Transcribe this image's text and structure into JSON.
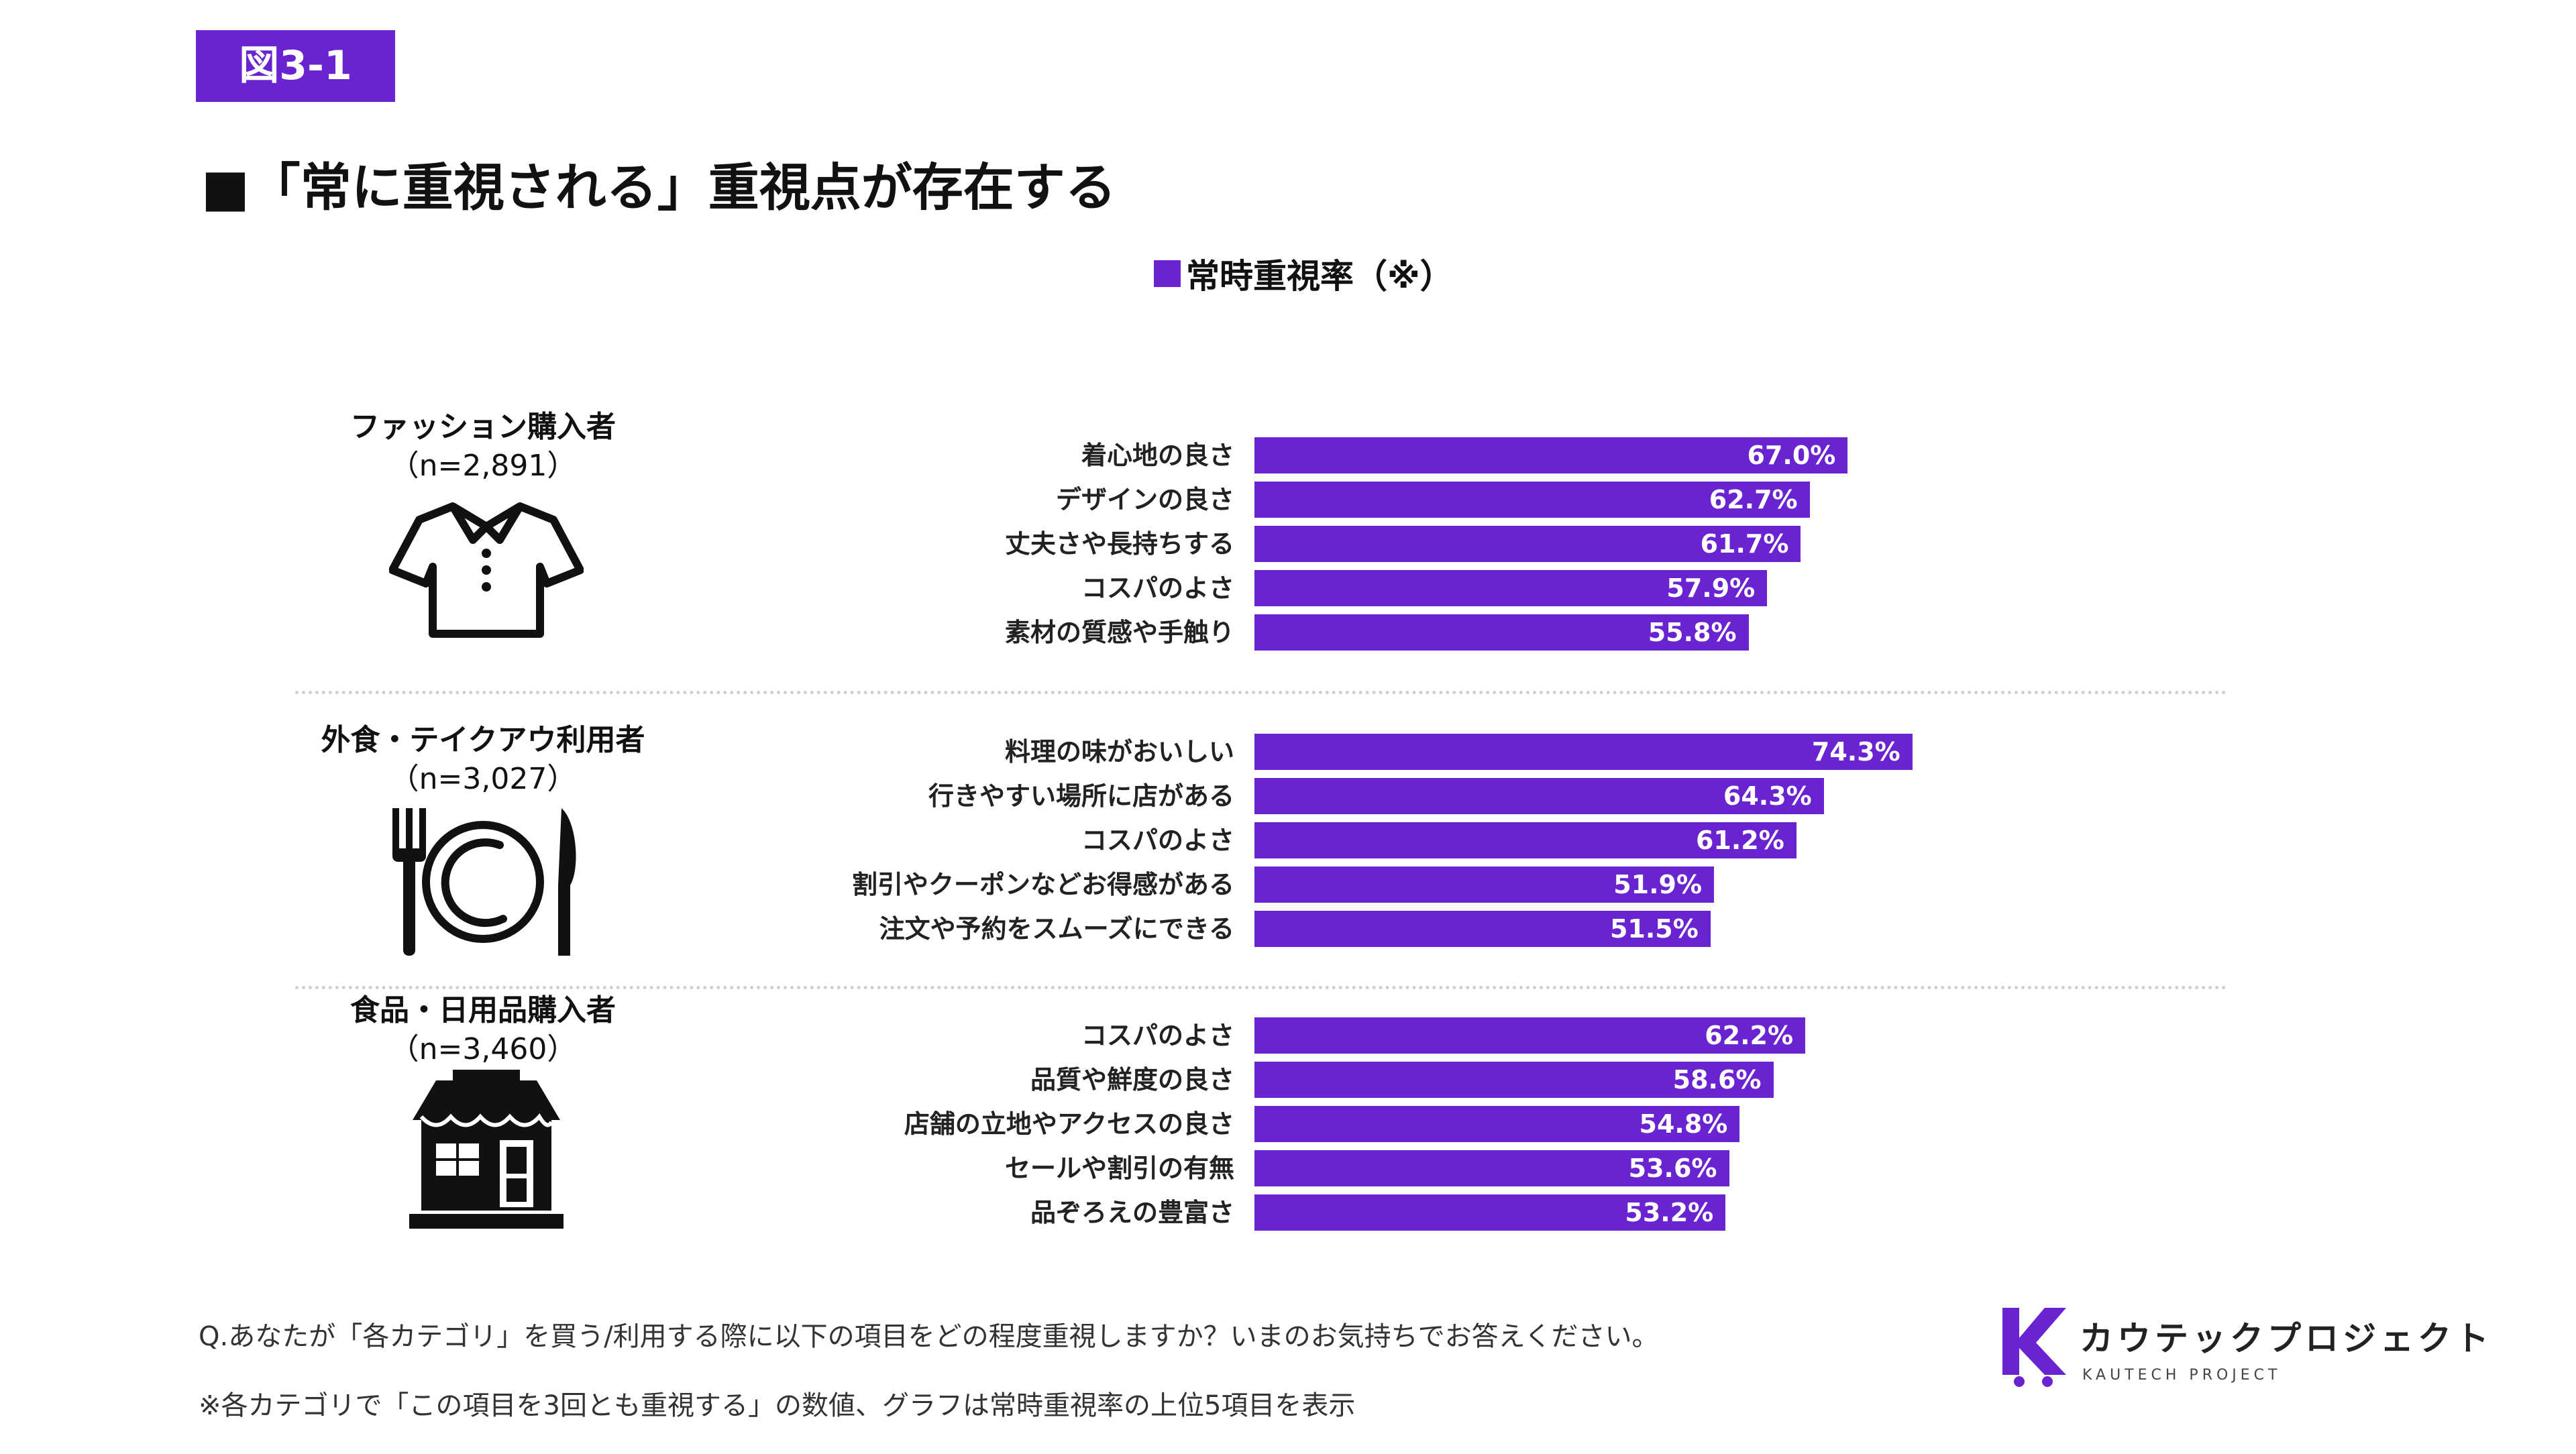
{
  "figure_label": "図3-1",
  "title": "■「常に重視される」重視点が存在する",
  "footnotes": {
    "question": "Q.あなたが「各カテゴリ」を買う/利用する際に以下の項目をどの程度重視しますか？いまのお気持ちでお答えください。",
    "note": "※各カテゴリで「この項目を3回とも重視する」の数値、グラフは常時重視率の上位5項目を表示"
  },
  "brand": {
    "name": "カウテックプロジェクト",
    "sub": "KAUTECH PROJECT"
  },
  "icons": {
    "group1": "polo-shirt-icon",
    "group2": "plate-fork-knife-icon",
    "group3": "storefront-icon",
    "brand": "k-cart-logo-icon"
  },
  "colors": {
    "bar": "#6a23d0",
    "bar_text": "#ffffff",
    "separator": "#cfcfcf"
  },
  "chart_data": {
    "type": "bar",
    "orientation": "horizontal",
    "legend": {
      "label": "常時重視率（※）",
      "position": "top-center"
    },
    "xlim": [
      0,
      100
    ],
    "unit": "%",
    "groups": [
      {
        "name": "ファッション購入者",
        "n": "（n=2,891）",
        "categories": [
          "着心地の良さ",
          "デザインの良さ",
          "丈夫さや長持ちする",
          "コスパのよさ",
          "素材の質感や手触り"
        ],
        "values": [
          67.0,
          62.7,
          61.7,
          57.9,
          55.8
        ],
        "value_labels": [
          "67.0%",
          "62.7%",
          "61.7%",
          "57.9%",
          "55.8%"
        ]
      },
      {
        "name": "外食・テイクアウ利用者",
        "n": "（n=3,027）",
        "categories": [
          "料理の味がおいしい",
          "行きやすい場所に店がある",
          "コスパのよさ",
          "割引やクーポンなどお得感がある",
          "注文や予約をスムーズにできる"
        ],
        "values": [
          74.3,
          64.3,
          61.2,
          51.9,
          51.5
        ],
        "value_labels": [
          "74.3%",
          "64.3%",
          "61.2%",
          "51.9%",
          "51.5%"
        ]
      },
      {
        "name": "食品・日用品購入者",
        "n": "（n=3,460）",
        "categories": [
          "コスパのよさ",
          "品質や鮮度の良さ",
          "店舗の立地やアクセスの良さ",
          "セールや割引の有無",
          "品ぞろえの豊富さ"
        ],
        "values": [
          62.2,
          58.6,
          54.8,
          53.6,
          53.2
        ],
        "value_labels": [
          "62.2%",
          "58.6%",
          "54.8%",
          "53.6%",
          "53.2%"
        ]
      }
    ]
  }
}
